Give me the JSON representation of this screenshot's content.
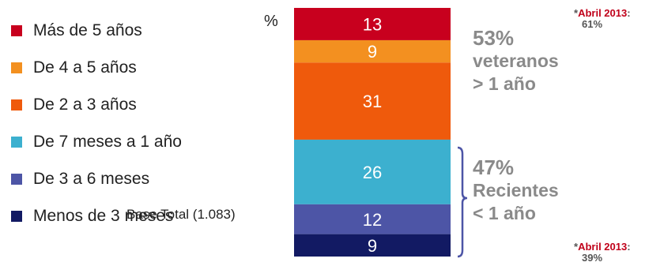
{
  "chart_data": {
    "type": "bar",
    "stacked": true,
    "unit": "%",
    "base_note": "Base Total (1.083)",
    "segments": [
      {
        "name": "Más de 5 años",
        "value": 13,
        "color": "#c8001e"
      },
      {
        "name": "De 4 a 5 años",
        "value": 9,
        "color": "#f39020"
      },
      {
        "name": "De 2 a 3 años",
        "value": 31,
        "color": "#ef5a0c"
      },
      {
        "name": "De 7 meses a 1 año",
        "value": 26,
        "color": "#3cb0cf"
      },
      {
        "name": "De 3 a 6 meses",
        "value": 12,
        "color": "#4d55a6"
      },
      {
        "name": "Menos de 3 meses",
        "value": 9,
        "color": "#121a63"
      }
    ],
    "groups": [
      {
        "pct": "53%",
        "line1": "veteranos",
        "line2": "> 1 año"
      },
      {
        "pct": "47%",
        "line1": "Recientes",
        "line2": "< 1 año"
      }
    ],
    "notes": [
      {
        "prefix": "*",
        "label": "Abril 2013",
        "suffix": ":",
        "value": "61%"
      },
      {
        "prefix": "*",
        "label": "Abril 2013",
        "suffix": ":",
        "value": "39%"
      }
    ]
  }
}
